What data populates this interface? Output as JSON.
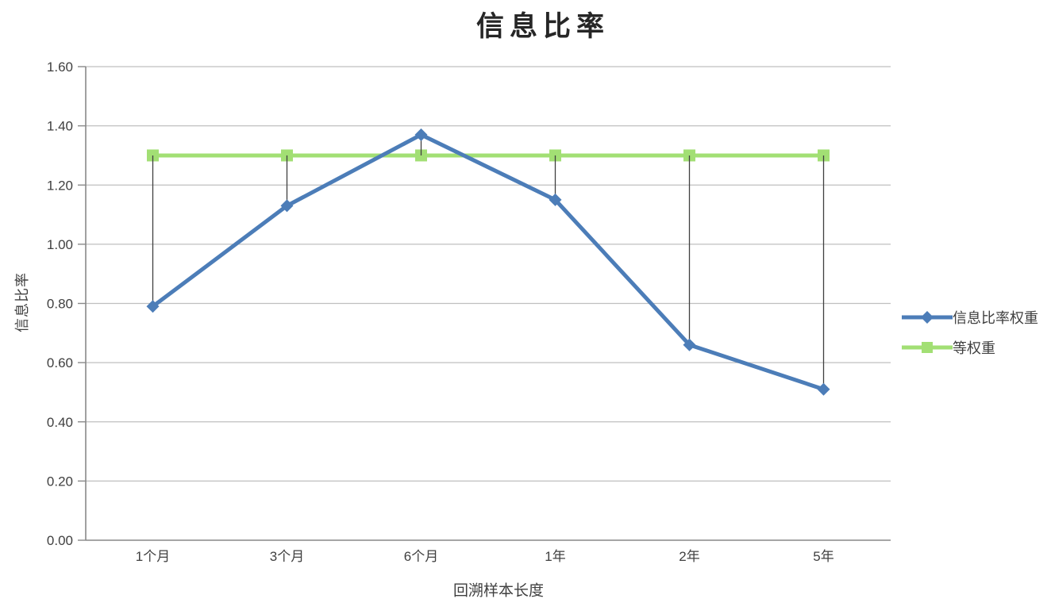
{
  "chart_data": {
    "type": "line",
    "title": "信息比率",
    "xlabel": "回溯样本长度",
    "ylabel": "信息比率",
    "categories": [
      "1个月",
      "3个月",
      "6个月",
      "1年",
      "2年",
      "5年"
    ],
    "series": [
      {
        "name": "信息比率权重",
        "color": "#4C7DB8",
        "marker": "diamond",
        "values": [
          0.79,
          1.13,
          1.37,
          1.15,
          0.66,
          0.51
        ]
      },
      {
        "name": "等权重",
        "color": "#A2DF74",
        "marker": "square",
        "values": [
          1.3,
          1.3,
          1.3,
          1.3,
          1.3,
          1.3
        ]
      }
    ],
    "ylim": [
      0,
      1.6
    ],
    "ytick_step": 0.2,
    "ytick_labels": [
      "0.00",
      "0.20",
      "0.40",
      "0.60",
      "0.80",
      "1.00",
      "1.20",
      "1.40",
      "1.60"
    ],
    "grid": true,
    "high_low_lines": true,
    "legend_position": "right",
    "colors": {
      "grid": "#BFBFBF",
      "axis": "#898989",
      "highlow": "#404040",
      "text": "#404040"
    }
  }
}
